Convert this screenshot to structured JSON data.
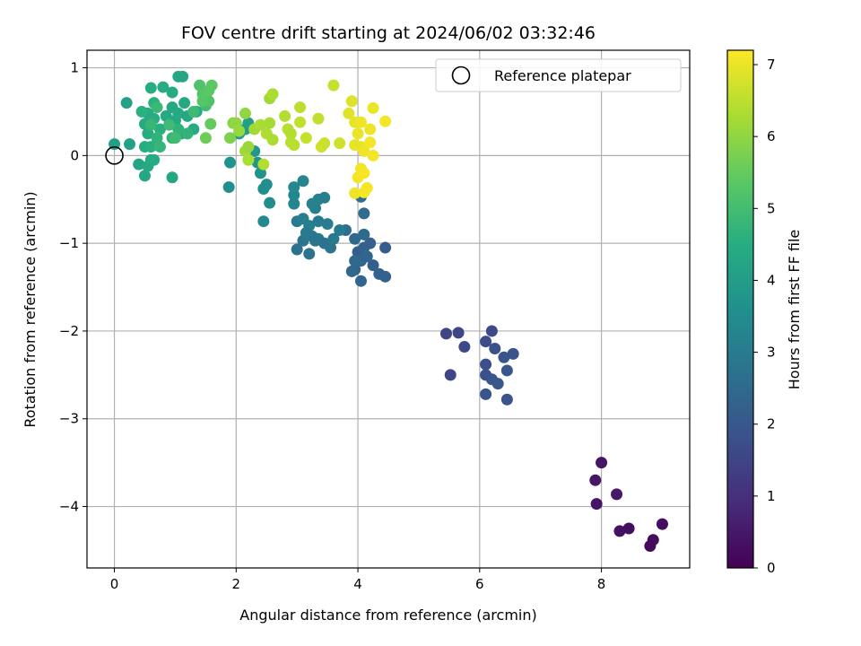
{
  "chart_data": {
    "type": "scatter",
    "title": "FOV centre drift starting at 2024/06/02 03:32:46",
    "xlabel": "Angular distance from reference (arcmin)",
    "ylabel": "Rotation from reference (arcmin)",
    "xlim": [
      -0.45,
      9.45
    ],
    "ylim": [
      -4.7,
      1.2
    ],
    "xticks": [
      0,
      2,
      4,
      6,
      8
    ],
    "yticks": [
      1,
      0,
      -1,
      -2,
      -3,
      -4
    ],
    "xtick_labels": [
      "0",
      "2",
      "4",
      "6",
      "8"
    ],
    "ytick_labels": [
      "1",
      "0",
      "−1",
      "−2",
      "−3",
      "−4"
    ],
    "grid": true,
    "legend": {
      "position": "top-right",
      "entries": [
        "Reference platepar"
      ]
    },
    "reference_point": {
      "x": 0,
      "y": 0,
      "marker": "hollow-circle"
    },
    "colorbar": {
      "label": "Hours from first FF file",
      "range": [
        0,
        7.2
      ],
      "ticks": [
        0,
        1,
        2,
        3,
        4,
        5,
        6,
        7
      ],
      "tick_labels": [
        "0",
        "1",
        "2",
        "3",
        "4",
        "5",
        "6",
        "7"
      ],
      "colormap": "viridis"
    },
    "series": [
      {
        "points": [
          [
            8.0,
            -3.5,
            0.4
          ],
          [
            7.9,
            -3.7,
            0.45
          ],
          [
            7.92,
            -3.97,
            0.4
          ],
          [
            8.25,
            -3.86,
            0.5
          ],
          [
            8.3,
            -4.28,
            0.35
          ],
          [
            8.45,
            -4.25,
            0.3
          ],
          [
            8.85,
            -4.38,
            0.2
          ],
          [
            8.8,
            -4.45,
            0.15
          ],
          [
            9.0,
            -4.2,
            0.25
          ],
          [
            5.45,
            -2.03,
            1.5
          ],
          [
            5.65,
            -2.02,
            1.55
          ],
          [
            5.75,
            -2.18,
            1.6
          ],
          [
            5.52,
            -2.5,
            1.5
          ],
          [
            6.1,
            -2.12,
            1.7
          ],
          [
            6.2,
            -2.0,
            1.65
          ],
          [
            6.25,
            -2.2,
            1.8
          ],
          [
            6.4,
            -2.3,
            1.9
          ],
          [
            6.55,
            -2.26,
            1.85
          ],
          [
            6.1,
            -2.38,
            1.75
          ],
          [
            6.45,
            -2.45,
            1.95
          ],
          [
            6.1,
            -2.5,
            1.8
          ],
          [
            6.2,
            -2.55,
            1.9
          ],
          [
            6.3,
            -2.6,
            2.0
          ],
          [
            6.1,
            -2.72,
            1.9
          ],
          [
            6.45,
            -2.78,
            1.85
          ],
          [
            4.0,
            -1.1,
            2.2
          ],
          [
            4.1,
            -1.05,
            2.3
          ],
          [
            4.2,
            -1.0,
            2.25
          ],
          [
            4.45,
            -1.05,
            2.1
          ],
          [
            3.95,
            -1.3,
            2.3
          ],
          [
            4.05,
            -1.2,
            2.4
          ],
          [
            4.15,
            -1.15,
            2.35
          ],
          [
            4.25,
            -1.25,
            2.2
          ],
          [
            4.35,
            -1.35,
            2.3
          ],
          [
            4.45,
            -1.38,
            2.25
          ],
          [
            4.05,
            -1.43,
            2.35
          ],
          [
            3.9,
            -1.32,
            2.4
          ],
          [
            3.95,
            -0.95,
            2.45
          ],
          [
            4.1,
            -0.9,
            2.5
          ],
          [
            4.1,
            -0.66,
            2.55
          ],
          [
            4.05,
            -0.47,
            2.6
          ],
          [
            3.8,
            -0.85,
            2.6
          ],
          [
            3.95,
            -1.2,
            2.5
          ],
          [
            3.0,
            -1.07,
            2.7
          ],
          [
            3.2,
            -1.12,
            2.75
          ],
          [
            3.1,
            -0.97,
            2.8
          ],
          [
            3.25,
            -0.92,
            2.85
          ],
          [
            3.35,
            -0.95,
            2.9
          ],
          [
            3.45,
            -1.0,
            2.7
          ],
          [
            3.55,
            -1.05,
            2.8
          ],
          [
            3.6,
            -0.95,
            2.9
          ],
          [
            3.7,
            -0.85,
            2.95
          ],
          [
            3.0,
            -0.75,
            3.0
          ],
          [
            3.1,
            -0.72,
            3.05
          ],
          [
            3.2,
            -0.8,
            3.1
          ],
          [
            3.35,
            -0.75,
            3.0
          ],
          [
            3.5,
            -0.78,
            3.05
          ],
          [
            3.3,
            -0.6,
            3.1
          ],
          [
            3.25,
            -0.55,
            3.15
          ],
          [
            3.35,
            -0.5,
            3.2
          ],
          [
            3.45,
            -0.48,
            3.1
          ],
          [
            3.15,
            -0.88,
            3.0
          ],
          [
            3.3,
            -0.97,
            2.85
          ],
          [
            2.95,
            -0.55,
            3.3
          ],
          [
            2.95,
            -0.45,
            3.35
          ],
          [
            2.95,
            -0.36,
            3.4
          ],
          [
            3.1,
            -0.29,
            3.3
          ],
          [
            2.55,
            -0.54,
            3.5
          ],
          [
            2.45,
            -0.75,
            3.4
          ],
          [
            2.45,
            -0.38,
            3.6
          ],
          [
            2.5,
            -0.33,
            3.55
          ],
          [
            2.4,
            -0.2,
            3.7
          ],
          [
            2.35,
            -0.08,
            3.75
          ],
          [
            2.3,
            0.05,
            3.8
          ],
          [
            1.9,
            -0.08,
            3.7
          ],
          [
            1.88,
            -0.36,
            3.6
          ],
          [
            2.05,
            0.25,
            3.9
          ],
          [
            2.15,
            0.3,
            4.0
          ],
          [
            2.2,
            0.37,
            4.05
          ],
          [
            0.0,
            0.13,
            4.1
          ],
          [
            0.2,
            0.6,
            4.1
          ],
          [
            0.25,
            0.13,
            4.15
          ],
          [
            0.4,
            -0.1,
            4.2
          ],
          [
            0.5,
            -0.23,
            4.3
          ],
          [
            0.55,
            -0.12,
            4.35
          ],
          [
            0.6,
            -0.05,
            4.4
          ],
          [
            0.65,
            -0.05,
            4.45
          ],
          [
            0.95,
            -0.25,
            4.3
          ],
          [
            0.5,
            0.1,
            4.5
          ],
          [
            0.6,
            0.1,
            4.55
          ],
          [
            0.55,
            0.25,
            4.5
          ],
          [
            0.5,
            0.36,
            4.4
          ],
          [
            0.55,
            0.48,
            4.45
          ],
          [
            0.65,
            0.42,
            4.5
          ],
          [
            0.75,
            0.3,
            4.55
          ],
          [
            0.85,
            0.45,
            4.4
          ],
          [
            0.95,
            0.55,
            4.35
          ],
          [
            1.0,
            0.4,
            4.3
          ],
          [
            1.05,
            0.48,
            4.4
          ],
          [
            1.1,
            0.25,
            4.45
          ],
          [
            1.15,
            0.6,
            4.35
          ],
          [
            1.2,
            0.45,
            4.3
          ],
          [
            1.3,
            0.3,
            4.4
          ],
          [
            1.35,
            0.5,
            4.45
          ],
          [
            0.6,
            0.77,
            4.5
          ],
          [
            0.8,
            0.78,
            4.45
          ],
          [
            0.95,
            0.72,
            4.4
          ],
          [
            1.05,
            0.9,
            4.3
          ],
          [
            1.12,
            0.9,
            4.25
          ],
          [
            0.45,
            0.5,
            4.55
          ],
          [
            0.65,
            0.6,
            4.6
          ],
          [
            0.7,
            0.2,
            4.7
          ],
          [
            0.75,
            0.1,
            4.75
          ],
          [
            0.95,
            0.2,
            4.7
          ],
          [
            1.05,
            0.3,
            4.65
          ],
          [
            1.2,
            0.25,
            4.7
          ],
          [
            0.6,
            0.35,
            4.8
          ],
          [
            0.7,
            0.55,
            4.85
          ],
          [
            0.9,
            0.35,
            4.9
          ],
          [
            1.0,
            0.2,
            4.95
          ],
          [
            1.3,
            0.5,
            4.9
          ],
          [
            1.5,
            0.57,
            5.0
          ],
          [
            1.4,
            0.8,
            5.2
          ],
          [
            1.45,
            0.7,
            5.25
          ],
          [
            1.5,
            0.68,
            5.3
          ],
          [
            1.55,
            0.62,
            5.2
          ],
          [
            1.6,
            0.8,
            5.4
          ],
          [
            1.45,
            0.62,
            5.3
          ],
          [
            1.55,
            0.74,
            5.4
          ],
          [
            1.58,
            0.36,
            5.5
          ],
          [
            1.5,
            0.2,
            5.6
          ],
          [
            1.9,
            0.2,
            5.8
          ],
          [
            1.95,
            0.37,
            5.9
          ],
          [
            2.0,
            0.37,
            6.0
          ],
          [
            2.05,
            0.28,
            6.1
          ],
          [
            2.15,
            0.48,
            6.0
          ],
          [
            2.15,
            0.05,
            6.2
          ],
          [
            2.2,
            -0.05,
            6.3
          ],
          [
            2.2,
            0.1,
            6.1
          ],
          [
            2.3,
            0.3,
            6.2
          ],
          [
            2.4,
            0.35,
            6.3
          ],
          [
            2.5,
            0.25,
            6.35
          ],
          [
            2.45,
            -0.1,
            6.4
          ],
          [
            2.55,
            0.37,
            6.25
          ],
          [
            2.6,
            0.18,
            6.3
          ],
          [
            2.55,
            0.65,
            6.2
          ],
          [
            2.6,
            0.7,
            6.3
          ],
          [
            2.8,
            0.45,
            6.4
          ],
          [
            2.85,
            0.3,
            6.45
          ],
          [
            2.9,
            0.15,
            6.5
          ],
          [
            2.95,
            0.12,
            6.45
          ],
          [
            2.9,
            0.25,
            6.4
          ],
          [
            3.05,
            0.55,
            6.5
          ],
          [
            3.05,
            0.38,
            6.55
          ],
          [
            3.15,
            0.2,
            6.6
          ],
          [
            3.35,
            0.42,
            6.55
          ],
          [
            3.4,
            0.1,
            6.7
          ],
          [
            3.45,
            0.14,
            6.65
          ],
          [
            3.6,
            0.8,
            6.6
          ],
          [
            3.7,
            0.14,
            6.7
          ],
          [
            3.85,
            0.48,
            6.9
          ],
          [
            3.9,
            0.62,
            6.85
          ],
          [
            3.95,
            0.38,
            6.95
          ],
          [
            4.0,
            0.25,
            7.0
          ],
          [
            4.05,
            0.1,
            7.0
          ],
          [
            3.95,
            0.12,
            6.95
          ],
          [
            4.1,
            0.05,
            7.05
          ],
          [
            4.2,
            0.15,
            7.1
          ],
          [
            4.25,
            0.0,
            7.1
          ],
          [
            4.2,
            0.3,
            7.05
          ],
          [
            4.25,
            0.54,
            7.0
          ],
          [
            4.45,
            0.39,
            7.1
          ],
          [
            4.05,
            0.38,
            7.05
          ],
          [
            4.0,
            -0.25,
            7.1
          ],
          [
            4.05,
            -0.15,
            7.1
          ],
          [
            4.1,
            -0.2,
            7.15
          ],
          [
            4.1,
            -0.42,
            7.15
          ],
          [
            4.15,
            -0.37,
            7.1
          ],
          [
            3.95,
            -0.43,
            7.05
          ]
        ]
      }
    ]
  }
}
